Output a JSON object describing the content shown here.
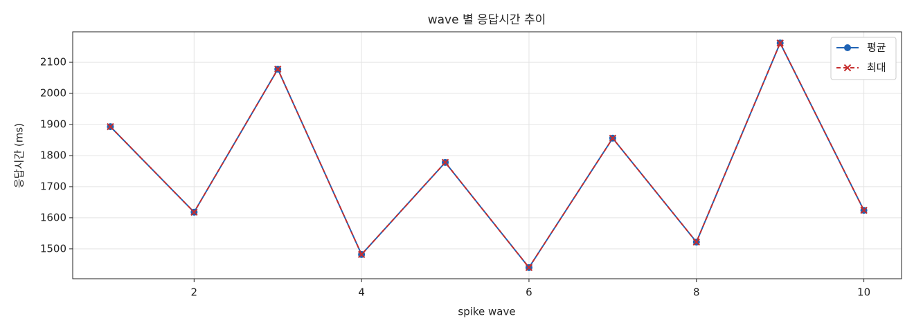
{
  "chart_data": {
    "type": "line",
    "title": "wave 별 응답시간 추이",
    "x_label": "spike wave",
    "y_label": "응답시간 (ms)",
    "x": [
      1,
      2,
      3,
      4,
      5,
      6,
      7,
      8,
      9,
      10
    ],
    "series": [
      {
        "name": "평균",
        "color": "#1f63b5",
        "marker": "circle",
        "dashed": false,
        "values": [
          1893,
          1618,
          2078,
          1482,
          1778,
          1440,
          1856,
          1522,
          2162,
          1624
        ]
      },
      {
        "name": "최대",
        "color": "#c62e2e",
        "marker": "cross",
        "dashed": true,
        "values": [
          1893,
          1618,
          2078,
          1482,
          1778,
          1440,
          1856,
          1522,
          2162,
          1624
        ]
      }
    ],
    "xlim": [
      0.55,
      10.45
    ],
    "xticks": [
      2,
      4,
      6,
      8,
      10
    ],
    "ylim": [
      1404,
      2198
    ],
    "yticks": [
      1500,
      1600,
      1700,
      1800,
      1900,
      2000,
      2100
    ],
    "grid": true,
    "legend": "upper right"
  }
}
